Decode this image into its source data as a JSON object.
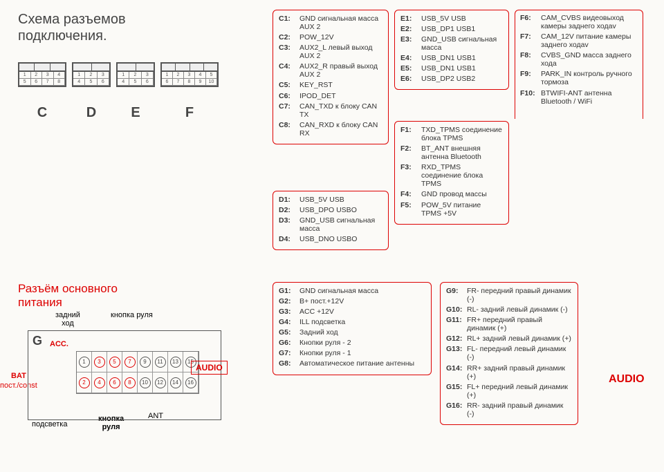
{
  "title_line1": "Схема разъемов",
  "title_line2": "подключения.",
  "connectors": {
    "C": "C",
    "D": "D",
    "E": "E",
    "F": "F"
  },
  "box_c": [
    {
      "n": "C1:",
      "d": "GND сигнальная масса AUX 2"
    },
    {
      "n": "C2:",
      "d": "POW_12V"
    },
    {
      "n": "C3:",
      "d": "AUX2_L левый выход AUX 2"
    },
    {
      "n": "C4:",
      "d": "AUX2_R правый выход AUX 2"
    },
    {
      "n": "C5:",
      "d": "KEY_RST"
    },
    {
      "n": "C6:",
      "d": "IPOD_DET"
    },
    {
      "n": "C7:",
      "d": "CAN_TXD к блоку CAN TX"
    },
    {
      "n": "C8:",
      "d": "CAN_RXD к блоку CAN RX"
    }
  ],
  "box_d": [
    {
      "n": "D1:",
      "d": "USB_5V USB"
    },
    {
      "n": "D2:",
      "d": "USB_DPO USBO"
    },
    {
      "n": "D3:",
      "d": "GND_USB сигнальная масса"
    },
    {
      "n": "D4:",
      "d": "USB_DNO USBO"
    }
  ],
  "box_e": [
    {
      "n": "E1:",
      "d": "USB_5V USB"
    },
    {
      "n": "E2:",
      "d": "USB_DP1 USB1"
    },
    {
      "n": "E3:",
      "d": "GND_USB сигнальная масса"
    },
    {
      "n": "E4:",
      "d": "USB_DN1 USB1"
    },
    {
      "n": "E5:",
      "d": "USB_DN1 USB1"
    },
    {
      "n": "E6:",
      "d": "USB_DP2 USB2"
    }
  ],
  "box_f1": [
    {
      "n": "F1:",
      "d": "TXD_TPMS соединение блока TPMS"
    },
    {
      "n": "F2:",
      "d": "BT_ANT внешняя антенна Bluetooth"
    },
    {
      "n": "F3:",
      "d": "RXD_TPMS соединение блока TPMS"
    },
    {
      "n": "F4:",
      "d": "GND провод массы"
    },
    {
      "n": "F5:",
      "d": "POW_5V питание TPMS +5V"
    }
  ],
  "box_f2": [
    {
      "n": "F6:",
      "d": "CAM_CVBS видеовыход камеры заднего ходаv"
    },
    {
      "n": "F7:",
      "d": "CAM_12V питание камеры заднего ходаv"
    },
    {
      "n": "F8:",
      "d": "CVBS_GND масса заднего хода"
    },
    {
      "n": "F9:",
      "d": "PARK_IN контроль ручного тормоза"
    },
    {
      "n": "F10:",
      "d": "BTWIFI-ANT антенна Bluetooth / WiFi"
    }
  ],
  "bottom_title_l1": "Разъём основного",
  "bottom_title_l2": "питания",
  "g_label": "G",
  "anno_rear": "задний\nход",
  "anno_wheel_btn": "кнопка руля",
  "anno_acc": "ACC.",
  "anno_bat1": "BAT",
  "anno_bat2": "пост./const",
  "anno_backlight": "подсветка",
  "anno_wheel_btn2": "кнопка\nруля",
  "anno_ant": "ANT",
  "audio_box": "AUDIO",
  "audio_label": "AUDIO",
  "box_g1": [
    {
      "n": "G1:",
      "d": "GND сигнальная масса"
    },
    {
      "n": "G2:",
      "d": "B+ пост.+12V"
    },
    {
      "n": "G3:",
      "d": "ACC +12V"
    },
    {
      "n": "G4:",
      "d": "ILL подсветка"
    },
    {
      "n": "G5:",
      "d": "Задний ход"
    },
    {
      "n": "G6:",
      "d": "Кнопки руля - 2"
    },
    {
      "n": "G7:",
      "d": "Кнопки руля - 1"
    },
    {
      "n": "G8:",
      "d": "Автоматическое питание антенны"
    }
  ],
  "box_g2": [
    {
      "n": "G9:",
      "d": "FR- передний правый динамик (-)"
    },
    {
      "n": "G10:",
      "d": "RL- задний левый динамик (-)"
    },
    {
      "n": "G11:",
      "d": "FR+ передний правый динамик (+)"
    },
    {
      "n": "G12:",
      "d": "RL+ задний левый динамик (+)"
    },
    {
      "n": "G13:",
      "d": "FL- передний левый динамик (-)"
    },
    {
      "n": "G14:",
      "d": "RR+ задний правый динамик (+)"
    },
    {
      "n": "G15:",
      "d": "FL+ передний левый динамик (+)"
    },
    {
      "n": "G16:",
      "d": "RR- задний правый динамик (-)"
    }
  ],
  "colors": {
    "red": "#d00",
    "gray": "#555",
    "bg": "#fbfaf7"
  }
}
